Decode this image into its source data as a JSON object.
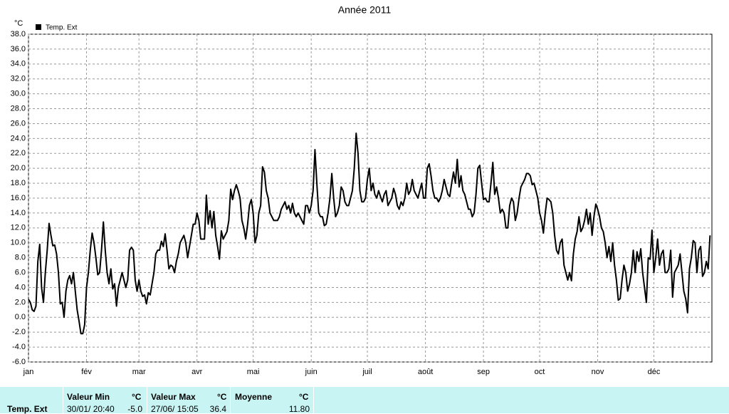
{
  "chart_data": {
    "type": "line",
    "title": "Année 2011",
    "y_label": "°C",
    "xlim": [
      0,
      365
    ],
    "ylim": [
      -6,
      38
    ],
    "grid": true,
    "yticks": [
      {
        "value": -6,
        "label": "-6.0"
      },
      {
        "value": -4,
        "label": "-4.0"
      },
      {
        "value": -2,
        "label": "-2.0"
      },
      {
        "value": 0,
        "label": "0.0"
      },
      {
        "value": 2,
        "label": "2.0"
      },
      {
        "value": 4,
        "label": "4.0"
      },
      {
        "value": 6,
        "label": "6.0"
      },
      {
        "value": 8,
        "label": "8.0"
      },
      {
        "value": 10,
        "label": "10.0"
      },
      {
        "value": 12,
        "label": "12.0"
      },
      {
        "value": 14,
        "label": "14.0"
      },
      {
        "value": 16,
        "label": "16.0"
      },
      {
        "value": 18,
        "label": "18.0"
      },
      {
        "value": 20,
        "label": "20.0"
      },
      {
        "value": 22,
        "label": "22.0"
      },
      {
        "value": 24,
        "label": "24.0"
      },
      {
        "value": 26,
        "label": "26.0"
      },
      {
        "value": 28,
        "label": "28.0"
      },
      {
        "value": 30,
        "label": "30.0"
      },
      {
        "value": 32,
        "label": "32.0"
      },
      {
        "value": 34,
        "label": "34.0"
      },
      {
        "value": 36,
        "label": "36.0"
      },
      {
        "value": 38,
        "label": "38.0"
      }
    ],
    "xticks": [
      {
        "value": 0,
        "label": "jan"
      },
      {
        "value": 31,
        "label": "fév"
      },
      {
        "value": 59,
        "label": "mar"
      },
      {
        "value": 90,
        "label": "avr"
      },
      {
        "value": 120,
        "label": "mai"
      },
      {
        "value": 151,
        "label": "juin"
      },
      {
        "value": 181,
        "label": "juil"
      },
      {
        "value": 212,
        "label": "août"
      },
      {
        "value": 243,
        "label": "sep"
      },
      {
        "value": 273,
        "label": "oct"
      },
      {
        "value": 304,
        "label": "nov"
      },
      {
        "value": 334,
        "label": "déc"
      }
    ],
    "x": [
      0,
      1,
      2,
      3,
      4,
      5,
      6,
      7,
      8,
      9,
      10,
      11,
      12,
      13,
      14,
      15,
      16,
      17,
      18,
      19,
      20,
      21,
      22,
      23,
      24,
      25,
      26,
      27,
      28,
      29,
      30,
      31,
      32,
      33,
      34,
      35,
      36,
      37,
      38,
      39,
      40,
      41,
      42,
      43,
      44,
      45,
      46,
      47,
      48,
      49,
      50,
      51,
      52,
      53,
      54,
      55,
      56,
      57,
      58,
      59,
      60,
      61,
      62,
      63,
      64,
      65,
      66,
      67,
      68,
      69,
      70,
      71,
      72,
      73,
      74,
      75,
      76,
      77,
      78,
      79,
      80,
      81,
      82,
      83,
      84,
      85,
      86,
      87,
      88,
      89,
      90,
      91,
      92,
      93,
      94,
      95,
      96,
      97,
      98,
      99,
      100,
      101,
      102,
      103,
      104,
      105,
      106,
      107,
      108,
      109,
      110,
      111,
      112,
      113,
      114,
      115,
      116,
      117,
      118,
      119,
      120,
      121,
      122,
      123,
      124,
      125,
      126,
      127,
      128,
      129,
      130,
      131,
      132,
      133,
      134,
      135,
      136,
      137,
      138,
      139,
      140,
      141,
      142,
      143,
      144,
      145,
      146,
      147,
      148,
      149,
      150,
      151,
      152,
      153,
      154,
      155,
      156,
      157,
      158,
      159,
      160,
      161,
      162,
      163,
      164,
      165,
      166,
      167,
      168,
      169,
      170,
      171,
      172,
      173,
      174,
      175,
      176,
      177,
      178,
      179,
      180,
      181,
      182,
      183,
      184,
      185,
      186,
      187,
      188,
      189,
      190,
      191,
      192,
      193,
      194,
      195,
      196,
      197,
      198,
      199,
      200,
      201,
      202,
      203,
      204,
      205,
      206,
      207,
      208,
      209,
      210,
      211,
      212,
      213,
      214,
      215,
      216,
      217,
      218,
      219,
      220,
      221,
      222,
      223,
      224,
      225,
      226,
      227,
      228,
      229,
      230,
      231,
      232,
      233,
      234,
      235,
      236,
      237,
      238,
      239,
      240,
      241,
      242,
      243,
      244,
      245,
      246,
      247,
      248,
      249,
      250,
      251,
      252,
      253,
      254,
      255,
      256,
      257,
      258,
      259,
      260,
      261,
      262,
      263,
      264,
      265,
      266,
      267,
      268,
      269,
      270,
      271,
      272,
      273,
      274,
      275,
      276,
      277,
      278,
      279,
      280,
      281,
      282,
      283,
      284,
      285,
      286,
      287,
      288,
      289,
      290,
      291,
      292,
      293,
      294,
      295,
      296,
      297,
      298,
      299,
      300,
      301,
      302,
      303,
      304,
      305,
      306,
      307,
      308,
      309,
      310,
      311,
      312,
      313,
      314,
      315,
      316,
      317,
      318,
      319,
      320,
      321,
      322,
      323,
      324,
      325,
      326,
      327,
      328,
      329,
      330,
      331,
      332,
      333,
      334,
      335,
      336,
      337,
      338,
      339,
      340,
      341,
      342,
      343,
      344,
      345,
      346,
      347,
      348,
      349,
      350,
      351,
      352,
      353,
      354,
      355,
      356,
      357,
      358,
      359,
      360,
      361,
      362,
      363,
      364
    ],
    "series": [
      {
        "name": "Temp. Ext",
        "color": "#000000",
        "values": [
          2.4,
          2.0,
          1.0,
          0.8,
          1.5,
          7.5,
          9.8,
          4,
          2.0,
          6,
          9,
          12.6,
          11,
          9.6,
          9.7,
          8.5,
          6,
          1.8,
          2,
          0,
          3.5,
          5,
          5.6,
          4.5,
          6,
          3.5,
          1,
          -0.5,
          -2.2,
          -2.2,
          -1,
          4,
          6,
          9,
          11.3,
          10,
          8,
          5.7,
          6,
          9,
          12.8,
          9,
          6,
          4.5,
          6.5,
          3.8,
          4.5,
          1.5,
          4,
          5,
          6,
          5,
          4,
          5,
          9,
          9.4,
          9,
          5,
          3.5,
          5,
          3.5,
          2.8,
          3,
          1.8,
          3.3,
          3,
          4.5,
          6,
          8.5,
          9,
          9,
          10.2,
          9.5,
          11.2,
          9,
          6.5,
          7,
          6.8,
          6,
          7.5,
          8.5,
          10,
          10.5,
          11,
          10,
          8,
          9.5,
          11,
          12.5,
          12.5,
          14,
          13,
          10.5,
          10.5,
          10.5,
          16.4,
          12.5,
          14.3,
          12,
          14.2,
          11,
          9.5,
          7.8,
          11.6,
          10.5,
          11,
          11.5,
          13,
          17.2,
          15.8,
          17,
          17.8,
          17,
          16,
          13,
          12,
          10.5,
          12.4,
          15,
          15.8,
          14,
          10,
          11,
          14,
          15,
          20.2,
          19.5,
          17,
          16,
          14,
          13.5,
          13,
          13,
          13,
          13.5,
          14.5,
          15,
          15.5,
          14.5,
          15,
          14,
          15.3,
          14,
          13.5,
          14,
          13.5,
          13,
          12.5,
          15,
          15,
          14,
          15,
          17,
          22.5,
          18,
          14,
          13.5,
          13.5,
          12.3,
          12.5,
          14,
          16,
          19.3,
          16,
          13.5,
          14,
          15,
          17.5,
          17,
          15.5,
          15,
          15,
          16,
          17,
          20,
          24.7,
          22,
          17,
          15.5,
          15.5,
          16,
          18.5,
          20,
          17,
          18,
          16.5,
          16,
          17,
          16.2,
          15.5,
          16.5,
          17,
          15,
          15.5,
          16,
          17.3,
          16.5,
          15,
          14.5,
          15.5,
          15,
          16,
          18,
          16.5,
          17,
          18.5,
          17,
          16.5,
          16,
          17,
          18,
          16,
          16,
          20,
          20.6,
          19,
          17,
          16,
          16,
          15.5,
          16,
          17,
          18.5,
          17.5,
          16.5,
          16.2,
          18,
          19.5,
          18,
          21.2,
          17.5,
          19,
          17,
          16.5,
          15.5,
          14.5,
          14.5,
          13.5,
          14,
          16.5,
          20,
          20.4,
          18,
          15.8,
          16,
          15.5,
          15.5,
          18,
          20.8,
          16.5,
          17.5,
          16,
          14,
          14.5,
          14,
          12,
          12,
          15,
          16,
          15.5,
          13,
          14,
          16,
          17.5,
          18,
          18.5,
          19.3,
          19.3,
          19,
          17.8,
          18,
          17,
          16,
          14,
          13,
          11.3,
          14,
          16,
          15.8,
          15.5,
          14,
          11,
          9,
          8.5,
          10,
          10.5,
          7,
          6,
          5,
          6,
          4.9,
          8.5,
          10.5,
          11.5,
          13.5,
          11.5,
          12,
          13,
          14.5,
          12.5,
          14,
          11,
          13.5,
          15.2,
          14.5,
          13.5,
          12,
          11.5,
          10,
          8,
          9.5,
          7.5,
          10,
          7,
          5,
          2.3,
          2.5,
          5,
          7,
          6,
          3.5,
          4.5,
          6,
          9,
          6,
          8.8,
          7.5,
          9.2,
          6,
          4,
          2,
          8,
          7.8,
          11.7,
          6,
          8,
          10.5,
          7,
          8.5,
          9,
          6,
          6,
          6.5,
          9,
          2.7,
          6,
          6.5,
          7,
          8.5,
          6,
          3.5,
          2.5,
          0.6,
          6.5,
          8,
          10.3,
          10,
          6,
          9,
          9.5,
          5.5,
          6,
          7.5,
          6.5,
          11
        ]
      }
    ]
  },
  "stats": {
    "row_label": "Temp. Ext",
    "min": {
      "title": "Valeur Min",
      "unit": "°C",
      "date": "30/01/ 20:40",
      "value": "-5.0"
    },
    "max": {
      "title": "Valeur Max",
      "unit": "°C",
      "date": "27/06/ 15:05",
      "value": "36.4"
    },
    "mean": {
      "title": "Moyenne",
      "unit": "°C",
      "value": "11.80"
    }
  }
}
